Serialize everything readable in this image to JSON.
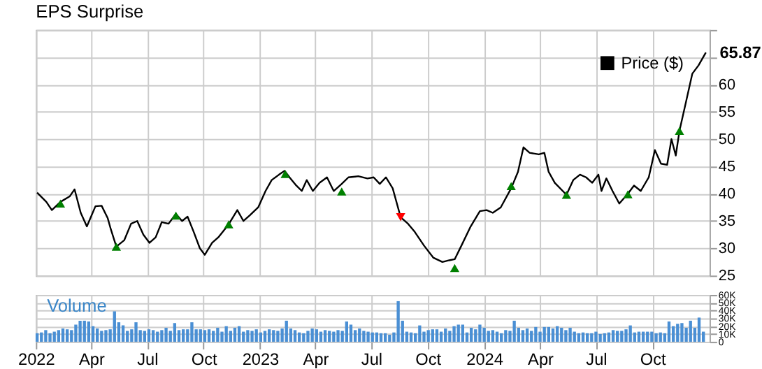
{
  "chart_data": [
    {
      "type": "line",
      "title": "EPS Surprise",
      "legend": "top right",
      "grid": true,
      "tick_labels": "y",
      "xlim": [
        "2022-01-01",
        "2025-01-02"
      ],
      "ylim": [
        25,
        70
      ],
      "xticks": [
        {
          "value": "2022-01-01",
          "label": null
        },
        {
          "value": "2022-04-01",
          "label": null
        },
        {
          "value": "2022-07-01",
          "label": null
        },
        {
          "value": "2022-10-01",
          "label": null
        },
        {
          "value": "2023-01-01",
          "label": null
        },
        {
          "value": "2023-04-01",
          "label": null
        },
        {
          "value": "2023-07-01",
          "label": null
        },
        {
          "value": "2023-10-01",
          "label": null
        },
        {
          "value": "2024-01-01",
          "label": null
        },
        {
          "value": "2024-04-01",
          "label": null
        },
        {
          "value": "2024-07-01",
          "label": null
        },
        {
          "value": "2024-10-01",
          "label": null
        }
      ],
      "yticks": [
        25,
        30,
        35,
        40,
        45,
        50,
        55,
        60,
        {
          "value": 65,
          "label": null
        },
        {
          "value": 70,
          "label": null
        }
      ],
      "annotations": [
        {
          "text": "65.87",
          "x": "2024-12-27",
          "y": 65.87
        }
      ],
      "series": [
        {
          "name": "Price ($)",
          "type": "line",
          "color": "#000000",
          "x": [
            "2022-01-03",
            "2022-01-18",
            "2022-01-27",
            "2022-02-10",
            "2022-02-25",
            "2022-03-05",
            "2022-03-15",
            "2022-03-25",
            "2022-04-08",
            "2022-04-18",
            "2022-04-28",
            "2022-05-03",
            "2022-05-12",
            "2022-05-25",
            "2022-06-05",
            "2022-06-15",
            "2022-06-25",
            "2022-07-05",
            "2022-07-15",
            "2022-07-25",
            "2022-08-05",
            "2022-08-17",
            "2022-08-27",
            "2022-09-05",
            "2022-09-15",
            "2022-09-25",
            "2022-10-03",
            "2022-10-15",
            "2022-10-25",
            "2022-11-11",
            "2022-11-25",
            "2022-12-05",
            "2022-12-15",
            "2022-12-29",
            "2023-01-10",
            "2023-01-20",
            "2023-02-01",
            "2023-02-10",
            "2023-02-18",
            "2023-03-01",
            "2023-03-10",
            "2023-03-18",
            "2023-03-28",
            "2023-04-08",
            "2023-04-20",
            "2023-05-01",
            "2023-05-14",
            "2023-05-25",
            "2023-06-10",
            "2023-06-25",
            "2023-07-05",
            "2023-07-15",
            "2023-07-25",
            "2023-08-05",
            "2023-08-18",
            "2023-08-30",
            "2023-09-10",
            "2023-09-25",
            "2023-10-10",
            "2023-10-25",
            "2023-11-05",
            "2023-11-14",
            "2023-11-25",
            "2023-12-10",
            "2023-12-25",
            "2024-01-05",
            "2024-01-15",
            "2024-01-28",
            "2024-02-14",
            "2024-02-25",
            "2024-03-05",
            "2024-03-15",
            "2024-03-30",
            "2024-04-08",
            "2024-04-15",
            "2024-04-25",
            "2024-05-14",
            "2024-05-25",
            "2024-06-05",
            "2024-06-15",
            "2024-06-25",
            "2024-07-05",
            "2024-07-10",
            "2024-07-18",
            "2024-07-28",
            "2024-08-08",
            "2024-08-22",
            "2024-09-01",
            "2024-09-12",
            "2024-09-25",
            "2024-10-05",
            "2024-10-15",
            "2024-10-25",
            "2024-11-01",
            "2024-11-08",
            "2024-11-14",
            "2024-11-25",
            "2024-12-05",
            "2024-12-15",
            "2024-12-27"
          ],
          "values": [
            40.2,
            38.5,
            37.0,
            38.5,
            39.5,
            40.8,
            36.5,
            34.0,
            37.7,
            37.8,
            35.5,
            33.5,
            30.3,
            31.5,
            34.5,
            35.0,
            32.5,
            31.0,
            32.0,
            34.8,
            34.5,
            36.3,
            35.0,
            35.8,
            33.0,
            30.0,
            28.8,
            31.0,
            32.0,
            34.4,
            37.0,
            35.0,
            36.0,
            37.5,
            40.5,
            42.5,
            43.5,
            44.2,
            43.0,
            41.5,
            40.5,
            42.5,
            40.5,
            42.0,
            43.0,
            40.5,
            41.8,
            43.0,
            43.2,
            42.8,
            43.0,
            41.8,
            43.0,
            41.0,
            35.7,
            34.5,
            33.0,
            30.5,
            28.3,
            27.5,
            27.8,
            28.0,
            30.5,
            34.0,
            36.8,
            37.0,
            36.5,
            37.5,
            41.0,
            44.0,
            48.5,
            47.5,
            47.2,
            47.5,
            44.0,
            42.0,
            39.8,
            42.5,
            43.5,
            43.0,
            42.0,
            43.5,
            40.5,
            42.8,
            40.5,
            38.2,
            40.0,
            41.5,
            40.5,
            43.0,
            48.0,
            45.5,
            45.3,
            50.0,
            47.0,
            51.5,
            57.0,
            62.0,
            63.5,
            65.87
          ]
        },
        {
          "type": "scatter",
          "marker": "triangle",
          "color": "#008000",
          "x": [
            "2022-02-10",
            "2022-05-12",
            "2022-08-17",
            "2022-11-11",
            "2023-02-11",
            "2023-05-14",
            "2023-11-14",
            "2024-02-14",
            "2024-05-14",
            "2024-08-22",
            "2024-11-14"
          ],
          "values": [
            38.2,
            30.3,
            36.0,
            34.4,
            43.6,
            40.4,
            26.4,
            41.4,
            39.8,
            39.9,
            51.5
          ]
        },
        {
          "type": "scatter",
          "marker": "triangle-down",
          "color": "#ff0000",
          "x": [
            "2023-08-18"
          ],
          "values": [
            35.7
          ]
        }
      ]
    },
    {
      "type": "bar",
      "title": "Volume",
      "grid": true,
      "xlim": [
        "2022-01-01",
        "2025-01-02"
      ],
      "ylim": [
        0,
        60
      ],
      "xticks": [
        {
          "value": "2022-01-01",
          "label": "2022"
        },
        {
          "value": "2022-04-01",
          "label": "Apr"
        },
        {
          "value": "2022-07-01",
          "label": "Jul"
        },
        {
          "value": "2022-10-01",
          "label": "Oct"
        },
        {
          "value": "2023-01-01",
          "label": "2023"
        },
        {
          "value": "2023-04-01",
          "label": "Apr"
        },
        {
          "value": "2023-07-01",
          "label": "Jul"
        },
        {
          "value": "2023-10-01",
          "label": "Oct"
        },
        {
          "value": "2024-01-01",
          "label": "2024"
        },
        {
          "value": "2024-04-01",
          "label": "Apr"
        },
        {
          "value": "2024-07-01",
          "label": "Jul"
        },
        {
          "value": "2024-10-01",
          "label": "Oct"
        }
      ],
      "yticks": [
        0,
        {
          "value": 10,
          "label": "10K"
        },
        {
          "value": 20,
          "label": "20K"
        },
        {
          "value": 30,
          "label": "30K"
        },
        {
          "value": 40,
          "label": "40K"
        },
        {
          "value": 50,
          "label": "50K"
        },
        {
          "value": 60,
          "label": "60K"
        }
      ],
      "series": [
        {
          "color": "#4a8fd4",
          "x": [
            "2022-01-03",
            "2022-01-10",
            "2022-01-17",
            "2022-01-24",
            "2022-01-31",
            "2022-02-07",
            "2022-02-14",
            "2022-02-21",
            "2022-02-28",
            "2022-03-07",
            "2022-03-14",
            "2022-03-21",
            "2022-03-28",
            "2022-04-04",
            "2022-04-11",
            "2022-04-18",
            "2022-04-25",
            "2022-05-02",
            "2022-05-09",
            "2022-05-16",
            "2022-05-23",
            "2022-05-30",
            "2022-06-06",
            "2022-06-13",
            "2022-06-20",
            "2022-06-27",
            "2022-07-04",
            "2022-07-11",
            "2022-07-18",
            "2022-07-25",
            "2022-08-01",
            "2022-08-08",
            "2022-08-15",
            "2022-08-22",
            "2022-08-29",
            "2022-09-05",
            "2022-09-12",
            "2022-09-19",
            "2022-09-26",
            "2022-10-03",
            "2022-10-10",
            "2022-10-17",
            "2022-10-24",
            "2022-10-31",
            "2022-11-07",
            "2022-11-14",
            "2022-11-21",
            "2022-11-28",
            "2022-12-05",
            "2022-12-12",
            "2022-12-19",
            "2022-12-26",
            "2023-01-02",
            "2023-01-09",
            "2023-01-16",
            "2023-01-23",
            "2023-01-30",
            "2023-02-06",
            "2023-02-13",
            "2023-02-20",
            "2023-02-27",
            "2023-03-06",
            "2023-03-13",
            "2023-03-20",
            "2023-03-27",
            "2023-04-03",
            "2023-04-10",
            "2023-04-17",
            "2023-04-24",
            "2023-05-01",
            "2023-05-08",
            "2023-05-15",
            "2023-05-22",
            "2023-05-29",
            "2023-06-05",
            "2023-06-12",
            "2023-06-19",
            "2023-06-26",
            "2023-07-03",
            "2023-07-10",
            "2023-07-17",
            "2023-07-24",
            "2023-07-31",
            "2023-08-07",
            "2023-08-14",
            "2023-08-21",
            "2023-08-28",
            "2023-09-04",
            "2023-09-11",
            "2023-09-18",
            "2023-09-25",
            "2023-10-02",
            "2023-10-09",
            "2023-10-16",
            "2023-10-23",
            "2023-10-30",
            "2023-11-06",
            "2023-11-13",
            "2023-11-20",
            "2023-11-27",
            "2023-12-04",
            "2023-12-11",
            "2023-12-18",
            "2023-12-25",
            "2024-01-01",
            "2024-01-08",
            "2024-01-15",
            "2024-01-22",
            "2024-01-29",
            "2024-02-05",
            "2024-02-12",
            "2024-02-19",
            "2024-02-26",
            "2024-03-04",
            "2024-03-11",
            "2024-03-18",
            "2024-03-25",
            "2024-04-01",
            "2024-04-08",
            "2024-04-15",
            "2024-04-22",
            "2024-04-29",
            "2024-05-06",
            "2024-05-13",
            "2024-05-20",
            "2024-05-27",
            "2024-06-03",
            "2024-06-10",
            "2024-06-17",
            "2024-06-24",
            "2024-07-01",
            "2024-07-08",
            "2024-07-15",
            "2024-07-22",
            "2024-07-29",
            "2024-08-05",
            "2024-08-12",
            "2024-08-19",
            "2024-08-26",
            "2024-09-02",
            "2024-09-09",
            "2024-09-16",
            "2024-09-23",
            "2024-09-30",
            "2024-10-07",
            "2024-10-14",
            "2024-10-21",
            "2024-10-28",
            "2024-11-04",
            "2024-11-11",
            "2024-11-18",
            "2024-11-25",
            "2024-12-02",
            "2024-12-09",
            "2024-12-16",
            "2024-12-23"
          ],
          "values": [
            11,
            12,
            15,
            11,
            13,
            15,
            17,
            16,
            15,
            22,
            27,
            27,
            26,
            20,
            17,
            14,
            15,
            16,
            39,
            25,
            21,
            14,
            16,
            25,
            15,
            14,
            16,
            15,
            13,
            15,
            18,
            14,
            24,
            15,
            16,
            16,
            25,
            16,
            16,
            15,
            16,
            14,
            18,
            13,
            20,
            14,
            18,
            20,
            13,
            15,
            14,
            16,
            12,
            14,
            16,
            15,
            14,
            17,
            27,
            17,
            15,
            12,
            11,
            14,
            17,
            16,
            13,
            15,
            14,
            13,
            15,
            14,
            26,
            22,
            15,
            17,
            14,
            13,
            12,
            12,
            11,
            11,
            9,
            12,
            52,
            27,
            13,
            12,
            11,
            21,
            13,
            15,
            16,
            16,
            13,
            17,
            14,
            20,
            22,
            22,
            12,
            18,
            16,
            22,
            18,
            14,
            15,
            13,
            11,
            15,
            14,
            27,
            18,
            15,
            17,
            14,
            19,
            13,
            19,
            19,
            17,
            20,
            18,
            15,
            18,
            13,
            11,
            12,
            11,
            11,
            13,
            10,
            11,
            12,
            15,
            14,
            14,
            16,
            21,
            12,
            13,
            13,
            13,
            13,
            11,
            12,
            11,
            26,
            20,
            23,
            24,
            18,
            27,
            18,
            31,
            13
          ]
        }
      ]
    }
  ]
}
